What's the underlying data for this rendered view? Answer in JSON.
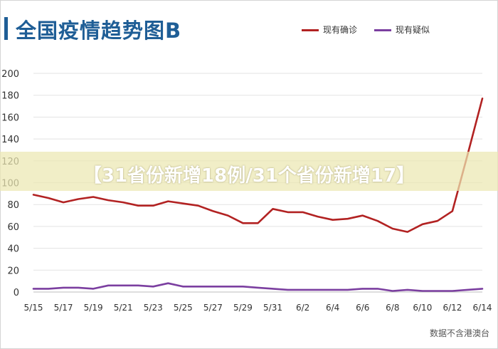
{
  "header": {
    "title": "全国疫情趋势图B"
  },
  "legend": [
    {
      "label": "现有确诊",
      "color": "#b22222"
    },
    {
      "label": "现有疑似",
      "color": "#7b3fa0"
    }
  ],
  "banner": {
    "text": "【31省份新增18例/31个省份新增17】"
  },
  "source": "数据不含港澳台",
  "chart_data": {
    "type": "line",
    "title": "全国疫情趋势图B",
    "xlabel": "",
    "ylabel": "",
    "ylim": [
      0,
      200
    ],
    "yticks": [
      0,
      20,
      40,
      60,
      80,
      100,
      120,
      140,
      160,
      180,
      200
    ],
    "grid": true,
    "legend_position": "top-right",
    "x": [
      "5/15",
      "5/16",
      "5/17",
      "5/18",
      "5/19",
      "5/20",
      "5/21",
      "5/22",
      "5/23",
      "5/24",
      "5/25",
      "5/26",
      "5/27",
      "5/28",
      "5/29",
      "5/30",
      "5/31",
      "6/1",
      "6/2",
      "6/3",
      "6/4",
      "6/5",
      "6/6",
      "6/7",
      "6/8",
      "6/9",
      "6/10",
      "6/11",
      "6/12",
      "6/13",
      "6/14"
    ],
    "xtick_labels": [
      "5/15",
      "5/17",
      "5/19",
      "5/21",
      "5/23",
      "5/25",
      "5/27",
      "5/29",
      "5/31",
      "6/2",
      "6/4",
      "6/6",
      "6/8",
      "6/10",
      "6/12",
      "6/14"
    ],
    "series": [
      {
        "name": "现有确诊",
        "color": "#b22222",
        "values": [
          89,
          86,
          82,
          85,
          87,
          84,
          82,
          79,
          79,
          83,
          81,
          79,
          74,
          70,
          63,
          63,
          76,
          73,
          73,
          69,
          66,
          67,
          70,
          65,
          58,
          55,
          62,
          65,
          74,
          125,
          177
        ]
      },
      {
        "name": "现有疑似",
        "color": "#7b3fa0",
        "values": [
          3,
          3,
          4,
          4,
          3,
          6,
          6,
          6,
          5,
          8,
          5,
          5,
          5,
          5,
          5,
          4,
          3,
          2,
          2,
          2,
          2,
          2,
          3,
          3,
          1,
          2,
          1,
          1,
          1,
          2,
          3
        ]
      }
    ]
  }
}
